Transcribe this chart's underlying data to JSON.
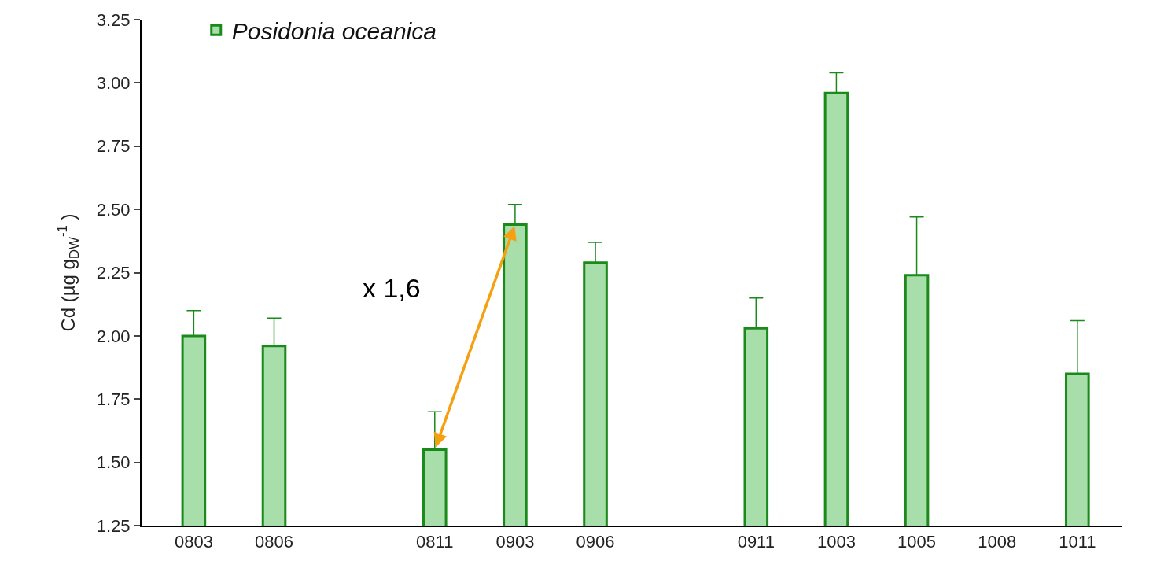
{
  "chart_data": {
    "type": "bar",
    "ylabel": "Cd (µg g$_{DW}$$^{-1}$ )",
    "categories": [
      "0803",
      "0806",
      null,
      "0811",
      "0903",
      "0906",
      null,
      "0911",
      "1003",
      "1005",
      "1008",
      "1011"
    ],
    "series": [
      {
        "name": "Posidonia oceanica",
        "color": "#a8deaa",
        "values": [
          2.0,
          1.96,
          null,
          1.55,
          2.44,
          2.29,
          null,
          2.03,
          2.96,
          2.24,
          null,
          1.85
        ],
        "errors": [
          [
            2.0,
            2.1
          ],
          [
            1.96,
            2.07
          ],
          null,
          [
            1.55,
            1.7
          ],
          [
            2.44,
            2.52
          ],
          [
            2.29,
            2.37
          ],
          null,
          [
            2.03,
            2.15
          ],
          [
            2.96,
            3.04
          ],
          [
            2.24,
            2.47
          ],
          null,
          [
            1.85,
            2.06
          ]
        ]
      }
    ],
    "annotations": [
      "x 1,6"
    ],
    "ylim": [
      1.25,
      3.25
    ],
    "yticks": [
      1.25,
      {
        "value": 1.5,
        "label": "1.50"
      },
      1.75,
      {
        "value": 2,
        "label": "2.00"
      },
      2.25,
      {
        "value": 2.5,
        "label": "2.50"
      },
      2.75,
      {
        "value": 3,
        "label": "3.00"
      },
      3.25
    ],
    "grid": false,
    "legend": "top left"
  }
}
